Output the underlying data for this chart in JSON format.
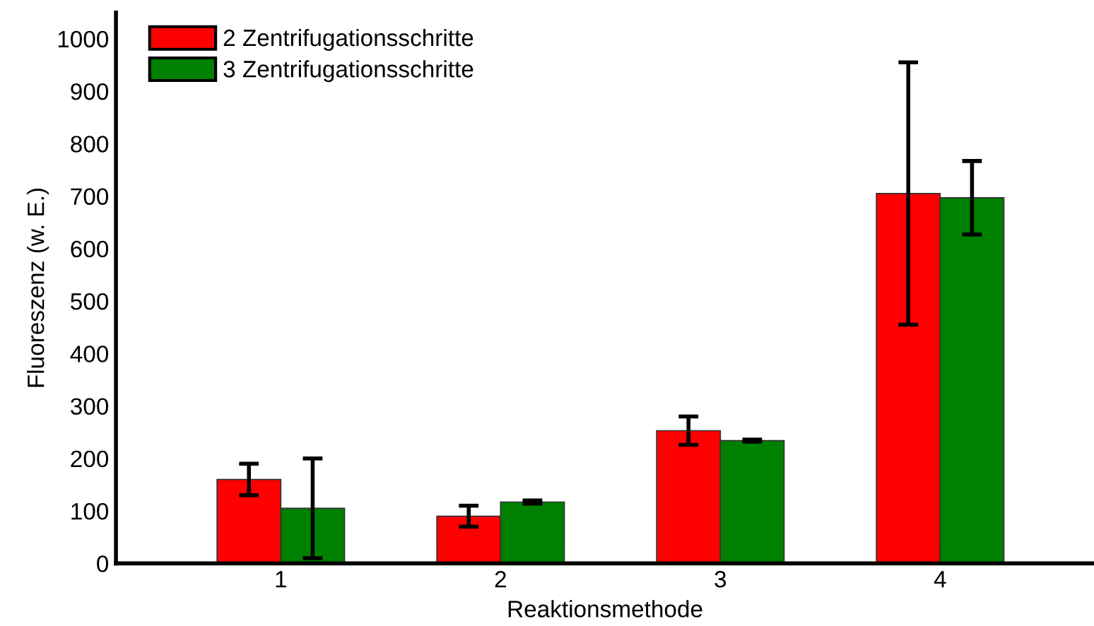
{
  "chart_data": {
    "type": "bar",
    "xlabel": "Reaktionsmethode",
    "ylabel": "Fluoreszenz (w. E.)",
    "categories": [
      "1",
      "2",
      "3",
      "4"
    ],
    "series": [
      {
        "name": "2 Zentrifugationsschritte",
        "color": "#ff0000",
        "values": [
          160,
          90,
          253,
          705
        ],
        "errors": [
          30,
          20,
          27,
          250
        ]
      },
      {
        "name": "3 Zentrifugationsschritte",
        "color": "#008000",
        "values": [
          105,
          117,
          234,
          697
        ],
        "errors": [
          95,
          3,
          2,
          70
        ]
      }
    ],
    "ylim": [
      0,
      1050
    ],
    "yticks": [
      0,
      100,
      200,
      300,
      400,
      500,
      600,
      700,
      800,
      900,
      1000
    ],
    "grid": false,
    "legend": "top left"
  }
}
